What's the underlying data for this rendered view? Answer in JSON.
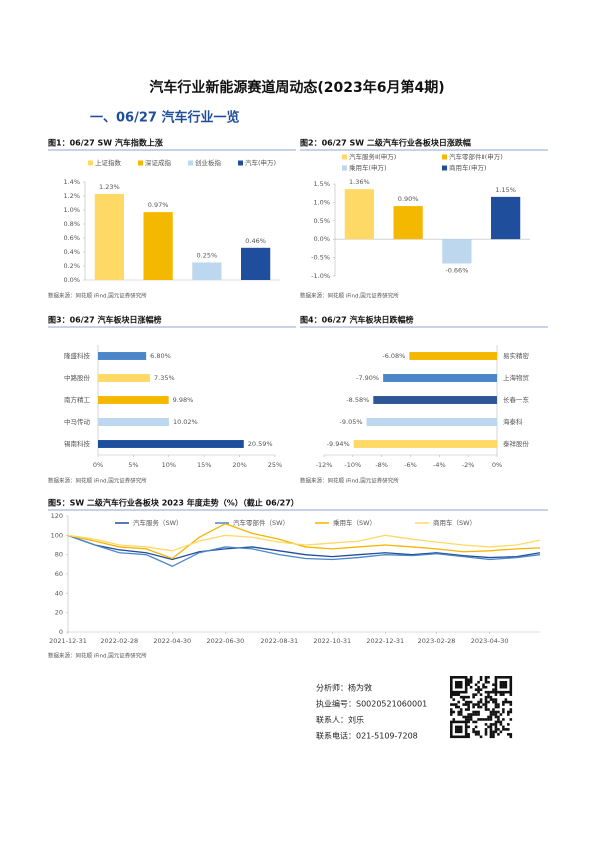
{
  "title": "汽车行业新能源赛道周动态(2023年6月第4期)",
  "section": "一、06/27 汽车行业一览",
  "contact": [
    "分析师：杨为敩",
    "执业编号：S0020521060001",
    "联系人：刘乐",
    "联系电话：021-5109-7208"
  ],
  "chart_data": [
    {
      "type": "bar",
      "title": "图1：06/27 SW 汽车指数上涨",
      "legend": "top",
      "categories": [
        "上证指数",
        "深证成指",
        "创业板指",
        "汽车(申万)"
      ],
      "colors": [
        "#ffd966",
        "#f5b800",
        "#bdd7ee",
        "#1f4e9c"
      ],
      "values": [
        1.23,
        0.97,
        0.25,
        0.46
      ],
      "value_labels": [
        "1.23%",
        "0.97%",
        "0.25%",
        "0.46%"
      ],
      "ylim": [
        0,
        1.4
      ],
      "yticks": [
        {
          "value": 0,
          "label": "0.0%"
        },
        {
          "value": 0.2,
          "label": "0.2%"
        },
        {
          "value": 0.4,
          "label": "0.4%"
        },
        {
          "value": 0.6,
          "label": "0.6%"
        },
        {
          "value": 0.8,
          "label": "0.8%"
        },
        {
          "value": 1.0,
          "label": "1.0%"
        },
        {
          "value": 1.2,
          "label": "1.2%"
        },
        {
          "value": 1.4,
          "label": "1.4%"
        }
      ],
      "source": "数据来源：同花顺 iFind,国元证券研究所"
    },
    {
      "type": "bar",
      "title": "图2：06/27 SW 二级汽车行业各板块日涨跌幅",
      "legend": "top",
      "categories": [
        "汽车服务Ⅱ(申万)",
        "汽车零部件Ⅱ(申万)",
        "乘用车(申万)",
        "商用车(申万)"
      ],
      "colors": [
        "#ffd966",
        "#f5b800",
        "#bdd7ee",
        "#1f4e9c"
      ],
      "values": [
        1.36,
        0.9,
        -0.66,
        1.15
      ],
      "value_labels": [
        "1.36%",
        "0.90%",
        "-0.66%",
        "1.15%"
      ],
      "ylim": [
        -1.0,
        1.5
      ],
      "yticks": [
        {
          "value": -1.0,
          "label": "-1.0%"
        },
        {
          "value": -0.5,
          "label": "-0.5%"
        },
        {
          "value": 0,
          "label": "0.0%"
        },
        {
          "value": 0.5,
          "label": "0.5%"
        },
        {
          "value": 1.0,
          "label": "1.0%"
        },
        {
          "value": 1.5,
          "label": "1.5%"
        }
      ],
      "source": "数据来源：同花顺 iFind,国元证券研究所"
    },
    {
      "type": "barh",
      "title": "图3：06/27 汽车板块日涨幅榜",
      "categories": [
        "隆盛科技",
        "中路股份",
        "南方精工",
        "中马传动",
        "锡南科技"
      ],
      "colors": [
        "#4a86c8",
        "#ffd966",
        "#f5b800",
        "#bdd7ee",
        "#1f4e9c"
      ],
      "values": [
        6.8,
        7.35,
        9.98,
        10.02,
        20.59
      ],
      "value_labels": [
        "6.80%",
        "7.35%",
        "9.98%",
        "10.02%",
        "20.59%"
      ],
      "xlim": [
        0,
        25
      ],
      "xticks": [
        {
          "value": 0,
          "label": "0%"
        },
        {
          "value": 5,
          "label": "5%"
        },
        {
          "value": 10,
          "label": "10%"
        },
        {
          "value": 15,
          "label": "15%"
        },
        {
          "value": 20,
          "label": "20%"
        },
        {
          "value": 25,
          "label": "25%"
        }
      ],
      "source": "数据来源：同花顺 iFind,国元证券研究所"
    },
    {
      "type": "barh",
      "title": "图4：06/27 汽车板块日跌幅榜",
      "categories": [
        "易实精密",
        "上海物贸",
        "长春一东",
        "海泰科",
        "泰祥股份"
      ],
      "colors": [
        "#f5b800",
        "#4a86c8",
        "#2f5597",
        "#bdd7ee",
        "#ffd966"
      ],
      "values": [
        -6.08,
        -7.9,
        -8.58,
        -9.05,
        -9.94
      ],
      "value_labels": [
        "-6.08%",
        "-7.90%",
        "-8.58%",
        "-9.05%",
        "-9.94%"
      ],
      "xlim": [
        -12,
        0
      ],
      "xticks": [
        {
          "value": -12,
          "label": "-12%"
        },
        {
          "value": -10,
          "label": "-10%"
        },
        {
          "value": -8,
          "label": "-8%"
        },
        {
          "value": -6,
          "label": "-6%"
        },
        {
          "value": -4,
          "label": "-4%"
        },
        {
          "value": -2,
          "label": "-2%"
        },
        {
          "value": 0,
          "label": "0%"
        }
      ],
      "source": "数据来源：同花顺 iFind,国元证券研究所"
    },
    {
      "type": "line",
      "title": "图5：SW 二级汽车行业各板块 2023 年度走势（%）（截止 06/27）",
      "legend": "top",
      "x": [
        "2021-12-31",
        "2022-01-31",
        "2022-02-28",
        "2022-03-31",
        "2022-04-30",
        "2022-05-31",
        "2022-06-30",
        "2022-07-31",
        "2022-08-31",
        "2022-09-30",
        "2022-10-31",
        "2022-11-30",
        "2022-12-31",
        "2023-01-31",
        "2023-02-28",
        "2023-03-31",
        "2023-04-30",
        "2023-05-31",
        "2023-06-27"
      ],
      "series": [
        {
          "name": "汽车服务（SW）",
          "color": "#1f4e9c",
          "values": [
            100,
            90,
            85,
            82,
            75,
            83,
            86,
            88,
            84,
            80,
            78,
            80,
            82,
            80,
            82,
            79,
            77,
            78,
            82
          ]
        },
        {
          "name": "汽车零部件（SW）",
          "color": "#4a86c8",
          "values": [
            100,
            90,
            82,
            80,
            68,
            82,
            88,
            86,
            80,
            76,
            75,
            77,
            80,
            79,
            81,
            78,
            75,
            77,
            80
          ]
        },
        {
          "name": "乘用车（SW）",
          "color": "#f5b400",
          "values": [
            100,
            94,
            88,
            86,
            76,
            98,
            112,
            102,
            96,
            88,
            86,
            88,
            90,
            88,
            86,
            83,
            84,
            86,
            87
          ]
        },
        {
          "name": "商用车（SW）",
          "color": "#ffd966",
          "values": [
            100,
            96,
            90,
            88,
            84,
            94,
            100,
            98,
            93,
            90,
            92,
            94,
            100,
            96,
            93,
            90,
            88,
            90,
            95
          ]
        }
      ],
      "xlim": [
        "2021-12-31",
        "2023-06-27"
      ],
      "xticks": [
        "2021-12-31",
        "2022-02-28",
        "2022-04-30",
        "2022-06-30",
        "2022-08-31",
        "2022-10-31",
        "2022-12-31",
        "2023-02-28",
        "2023-04-30"
      ],
      "ylim": [
        0,
        120
      ],
      "yticks": [
        0,
        20,
        40,
        60,
        80,
        100,
        120
      ],
      "source": "数据来源：同花顺 iFind,国元证券研究所"
    }
  ]
}
